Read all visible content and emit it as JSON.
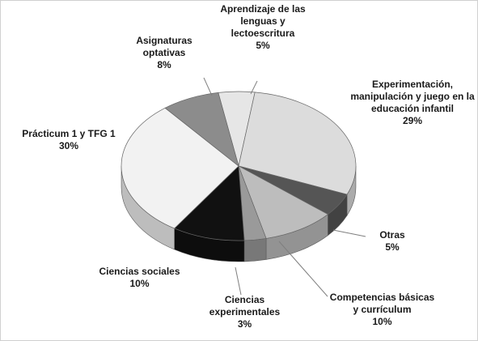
{
  "chart_data": {
    "type": "pie3d",
    "categories": [
      "Aprendizaje de las lenguas y lectoescritura",
      "Experimentación, manipulación y juego en la educación infantil",
      "Otras",
      "Competencias básicas y currículum",
      "Ciencias experimentales",
      "Ciencias sociales",
      "Prácticum 1 y TFG 1",
      "Asignaturas optativas"
    ],
    "values": [
      5,
      29,
      5,
      10,
      3,
      10,
      30,
      8
    ],
    "value_labels": [
      "5%",
      "29%",
      "5%",
      "10%",
      "3%",
      "10%",
      "30%",
      "8%"
    ],
    "colors": [
      "#e6e6e6",
      "#dcdcdc",
      "#555555",
      "#bdbdbd",
      "#9a9a9a",
      "#111111",
      "#f2f2f2",
      "#8c8c8c"
    ]
  }
}
